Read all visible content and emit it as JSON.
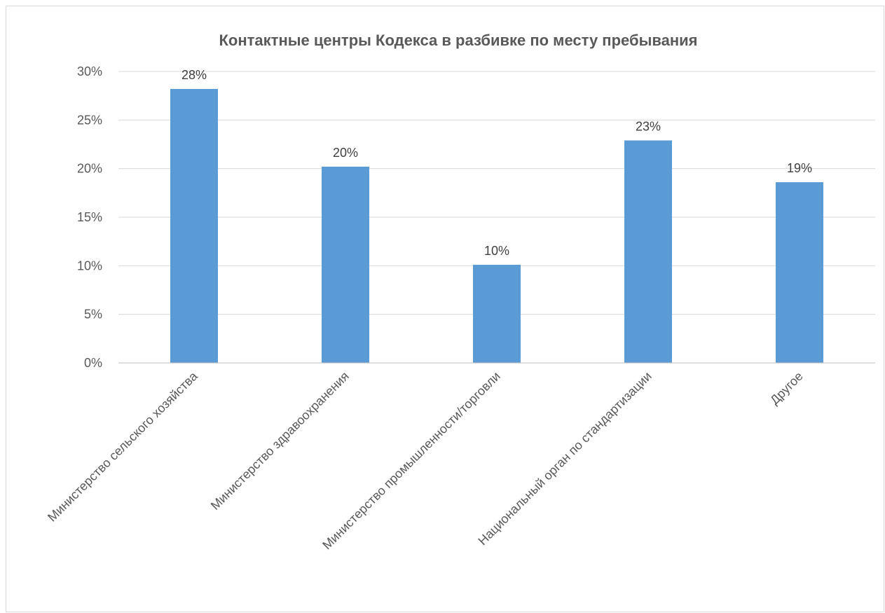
{
  "chart_data": {
    "type": "bar",
    "title": "Контактные центры Кодекса в разбивке по месту пребывания",
    "xlabel": "",
    "ylabel": "",
    "categories": [
      "Министерство сельского хозяйства",
      "Министерство здравоохранения",
      "Министерство промышленности/торговли",
      "Национальный орган по стандартизации",
      "Другое"
    ],
    "values": [
      28.2,
      20.2,
      10.1,
      22.9,
      18.6
    ],
    "data_labels": [
      "28%",
      "20%",
      "10%",
      "23%",
      "19%"
    ],
    "ylim": [
      0,
      30
    ],
    "yticks": [
      0,
      5,
      10,
      15,
      20,
      25,
      30
    ],
    "ytick_labels": [
      "0%",
      "5%",
      "10%",
      "15%",
      "20%",
      "25%",
      "30%"
    ],
    "grid": true,
    "legend": "none",
    "colors": {
      "bar": "#5b9bd5",
      "grid": "#d9d9d9",
      "axis": "#bfbfbf",
      "text": "#595959"
    }
  }
}
